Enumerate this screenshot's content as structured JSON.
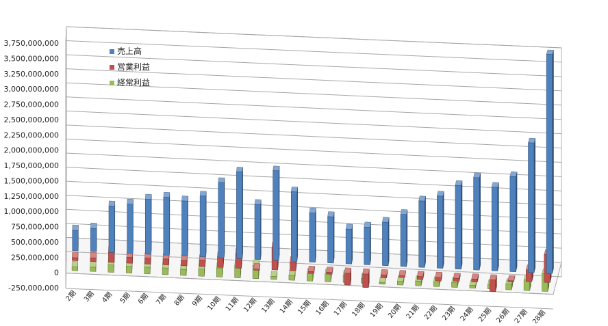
{
  "chart_data": {
    "type": "bar",
    "title": "",
    "xlabel": "",
    "ylabel": "",
    "ylim": [
      -250000000,
      3750000000
    ],
    "y_ticks": [
      "-250,000,000",
      "0",
      "250,000,000",
      "500,000,000",
      "750,000,000",
      "1,000,000,000",
      "1,250,000,000",
      "1,500,000,000",
      "1,750,000,000",
      "2,000,000,000",
      "2,250,000,000",
      "2,500,000,000",
      "2,750,000,000",
      "3,000,000,000",
      "3,250,000,000",
      "3,500,000,000",
      "3,750,000,000"
    ],
    "grid": true,
    "legend_position": "top-left",
    "categories": [
      "2期",
      "3期",
      "4期",
      "5期",
      "6期",
      "7期",
      "8期",
      "9期",
      "10期",
      "11期",
      "12期",
      "13期",
      "14期",
      "15期",
      "16期",
      "17期",
      "18期",
      "19期",
      "20期",
      "21期",
      "22期",
      "23期",
      "24期",
      "25期",
      "26期",
      "27期",
      "28期"
    ],
    "series": [
      {
        "name": "売上高",
        "color": "#4f81bd",
        "values": [
          350000000,
          400000000,
          800000000,
          850000000,
          950000000,
          1000000000,
          950000000,
          1050000000,
          1300000000,
          1500000000,
          950000000,
          1550000000,
          1200000000,
          850000000,
          800000000,
          600000000,
          650000000,
          750000000,
          900000000,
          1150000000,
          1250000000,
          1450000000,
          1600000000,
          1450000000,
          1650000000,
          2250000000,
          3800000000
        ]
      },
      {
        "name": "営業利益",
        "color": "#c0504d",
        "values": [
          50000000,
          60000000,
          180000000,
          100000000,
          100000000,
          100000000,
          90000000,
          110000000,
          180000000,
          250000000,
          -20000000,
          380000000,
          150000000,
          -30000000,
          -30000000,
          -200000000,
          -230000000,
          -50000000,
          -30000000,
          -50000000,
          -60000000,
          -50000000,
          -50000000,
          -200000000,
          -20000000,
          200000000,
          480000000
        ]
      },
      {
        "name": "経常利益",
        "color": "#9bbb59",
        "values": [
          60000000,
          70000000,
          120000000,
          110000000,
          110000000,
          110000000,
          100000000,
          120000000,
          150000000,
          200000000,
          220000000,
          50000000,
          80000000,
          120000000,
          130000000,
          120000000,
          80000000,
          30000000,
          60000000,
          80000000,
          80000000,
          80000000,
          50000000,
          70000000,
          100000000,
          180000000,
          300000000
        ]
      }
    ]
  }
}
